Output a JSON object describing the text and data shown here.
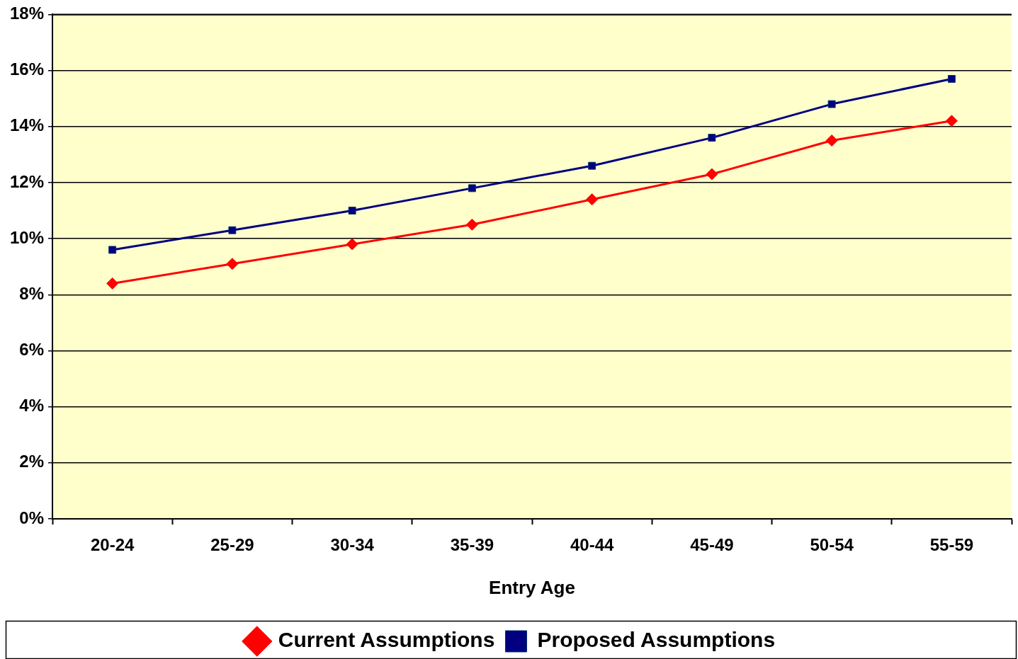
{
  "chart_data": {
    "type": "line",
    "xlabel": "Entry Age",
    "categories": [
      "20-24",
      "25-29",
      "30-34",
      "35-39",
      "40-44",
      "45-49",
      "50-54",
      "55-59"
    ],
    "series": [
      {
        "name": "Current Assumptions",
        "color": "#ff0000",
        "marker": "diamond",
        "values": [
          8.4,
          9.1,
          9.8,
          10.5,
          11.4,
          12.3,
          13.5,
          14.2
        ]
      },
      {
        "name": "Proposed Assumptions",
        "color": "#000080",
        "marker": "square",
        "values": [
          9.6,
          10.3,
          11.0,
          11.8,
          12.6,
          13.6,
          14.8,
          15.7
        ]
      }
    ],
    "ylim": [
      0,
      18
    ],
    "yticks": [
      {
        "value": 0,
        "label": "0%"
      },
      {
        "value": 2,
        "label": "2%"
      },
      {
        "value": 4,
        "label": "4%"
      },
      {
        "value": 6,
        "label": "6%"
      },
      {
        "value": 8,
        "label": "8%"
      },
      {
        "value": 10,
        "label": "10%"
      },
      {
        "value": 12,
        "label": "12%"
      },
      {
        "value": 14,
        "label": "14%"
      },
      {
        "value": 16,
        "label": "16%"
      },
      {
        "value": 18,
        "label": "18%"
      }
    ],
    "grid": "y",
    "legend": "bottom",
    "line_style": "solid"
  }
}
